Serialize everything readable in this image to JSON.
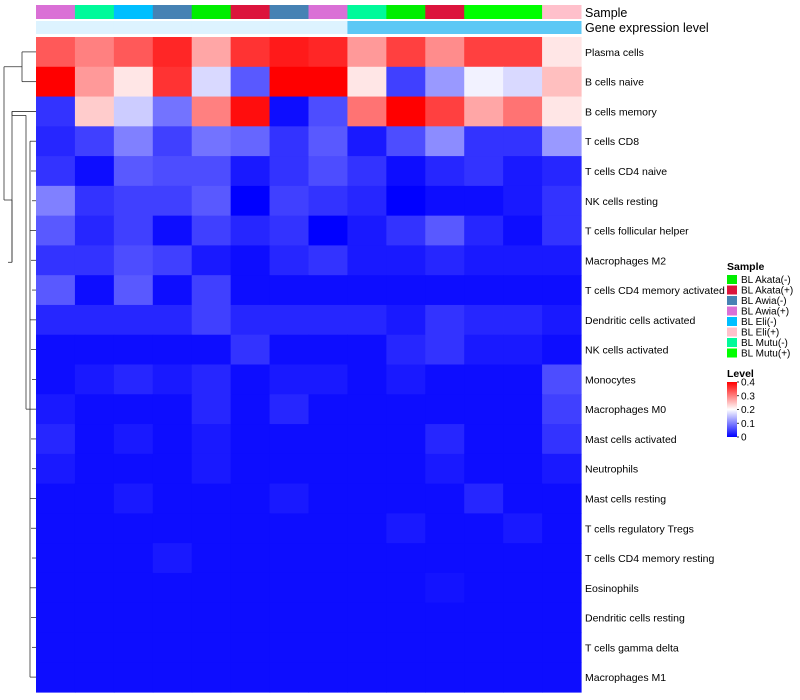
{
  "chart_data": {
    "type": "heatmap",
    "annotation_labels": {
      "sample": "Sample",
      "gene_expression": "Gene expression level"
    },
    "sample_legend": {
      "title": "Sample",
      "entries": [
        {
          "label": "BL Akata(-)",
          "color": "#00EE00"
        },
        {
          "label": "BL Akata(+)",
          "color": "#DC143C"
        },
        {
          "label": "BL Awia(-)",
          "color": "#4682B4"
        },
        {
          "label": "BL Awia(+)",
          "color": "#DA70D6"
        },
        {
          "label": "BL Eli(-)",
          "color": "#00BFFF"
        },
        {
          "label": "BL Eli(+)",
          "color": "#FFC0CB"
        },
        {
          "label": "BL Mutu(-)",
          "color": "#00FA9A"
        },
        {
          "label": "BL Mutu(+)",
          "color": "#00FF00"
        }
      ]
    },
    "level_legend": {
      "title": "Level",
      "ticks": [
        "0.4",
        "0.3",
        "0.2",
        "0.1",
        "0"
      ],
      "range": [
        0,
        0.4
      ],
      "colors": [
        "#0000FF",
        "#FFFFFF",
        "#FF0000"
      ]
    },
    "column_samples": [
      "BL Awia(+)",
      "BL Mutu(-)",
      "BL Eli(-)",
      "BL Awia(-)",
      "BL Akata(-)",
      "BL Akata(+)",
      "BL Awia(-)",
      "BL Awia(+)",
      "BL Mutu(-)",
      "BL Akata(-)",
      "BL Akata(+)",
      "BL Mutu(+)",
      "BL Mutu(+)",
      "BL Eli(+)"
    ],
    "gene_expression_colors": [
      "#DDF3FF",
      "#DDF3FF",
      "#DDF3FF",
      "#DDF3FF",
      "#DDF3FF",
      "#DDF3FF",
      "#DDF3FF",
      "#DDF3FF",
      "#5CC8F5",
      "#5CC8F5",
      "#5CC8F5",
      "#5CC8F5",
      "#5CC8F5",
      "#5CC8F5"
    ],
    "rows": [
      "Plasma cells",
      "B cells naive",
      "B cells memory",
      "T cells CD8",
      "T cells CD4 naive",
      "NK cells resting",
      "T cells follicular helper",
      "Macrophages M2",
      "T cells CD4 memory activated",
      "Dendritic cells activated",
      "NK cells activated",
      "Monocytes",
      "Macrophages M0",
      "Mast cells activated",
      "Neutrophils",
      "Mast cells resting",
      "T cells regulatory  Tregs",
      "T cells CD4 memory resting",
      "Eosinophils",
      "Dendritic cells resting",
      "T cells gamma delta",
      "Macrophages M1"
    ],
    "values": [
      [
        0.33,
        0.3,
        0.33,
        0.37,
        0.27,
        0.36,
        0.38,
        0.37,
        0.28,
        0.35,
        0.29,
        0.35,
        0.35,
        0.22
      ],
      [
        0.4,
        0.28,
        0.22,
        0.36,
        0.17,
        0.07,
        0.4,
        0.4,
        0.22,
        0.05,
        0.12,
        0.19,
        0.17,
        0.25
      ],
      [
        0.04,
        0.24,
        0.16,
        0.09,
        0.3,
        0.39,
        0.01,
        0.06,
        0.31,
        0.4,
        0.35,
        0.27,
        0.31,
        0.22
      ],
      [
        0.03,
        0.05,
        0.1,
        0.05,
        0.09,
        0.08,
        0.04,
        0.07,
        0.02,
        0.06,
        0.11,
        0.04,
        0.04,
        0.12
      ],
      [
        0.04,
        0.01,
        0.07,
        0.06,
        0.06,
        0.02,
        0.04,
        0.06,
        0.04,
        0.01,
        0.03,
        0.04,
        0.02,
        0.03
      ],
      [
        0.1,
        0.04,
        0.05,
        0.05,
        0.07,
        0.0,
        0.05,
        0.04,
        0.03,
        0.0,
        0.01,
        0.01,
        0.02,
        0.04
      ],
      [
        0.07,
        0.03,
        0.05,
        0.01,
        0.05,
        0.03,
        0.04,
        0.0,
        0.02,
        0.04,
        0.07,
        0.03,
        0.01,
        0.04
      ],
      [
        0.04,
        0.04,
        0.06,
        0.05,
        0.02,
        0.01,
        0.03,
        0.04,
        0.02,
        0.02,
        0.03,
        0.02,
        0.02,
        0.02
      ],
      [
        0.07,
        0.01,
        0.07,
        0.01,
        0.05,
        0.01,
        0.01,
        0.01,
        0.01,
        0.01,
        0.01,
        0.01,
        0.01,
        0.01
      ],
      [
        0.03,
        0.03,
        0.03,
        0.03,
        0.05,
        0.03,
        0.03,
        0.03,
        0.03,
        0.02,
        0.04,
        0.03,
        0.03,
        0.02
      ],
      [
        0.01,
        0.01,
        0.01,
        0.01,
        0.01,
        0.04,
        0.01,
        0.01,
        0.01,
        0.03,
        0.04,
        0.02,
        0.02,
        0.01
      ],
      [
        0.01,
        0.02,
        0.03,
        0.02,
        0.03,
        0.01,
        0.02,
        0.02,
        0.01,
        0.02,
        0.01,
        0.01,
        0.01,
        0.06
      ],
      [
        0.02,
        0.01,
        0.01,
        0.01,
        0.03,
        0.01,
        0.03,
        0.01,
        0.01,
        0.01,
        0.01,
        0.01,
        0.01,
        0.05
      ],
      [
        0.03,
        0.01,
        0.02,
        0.01,
        0.02,
        0.01,
        0.01,
        0.01,
        0.01,
        0.01,
        0.03,
        0.01,
        0.01,
        0.04
      ],
      [
        0.02,
        0.01,
        0.01,
        0.01,
        0.02,
        0.01,
        0.01,
        0.01,
        0.01,
        0.01,
        0.02,
        0.01,
        0.01,
        0.02
      ],
      [
        0.01,
        0.01,
        0.02,
        0.01,
        0.01,
        0.01,
        0.02,
        0.01,
        0.01,
        0.01,
        0.01,
        0.03,
        0.01,
        0.01
      ],
      [
        0.01,
        0.01,
        0.01,
        0.01,
        0.01,
        0.01,
        0.01,
        0.01,
        0.01,
        0.02,
        0.01,
        0.01,
        0.02,
        0.01
      ],
      [
        0.01,
        0.01,
        0.01,
        0.02,
        0.01,
        0.01,
        0.01,
        0.01,
        0.01,
        0.01,
        0.01,
        0.01,
        0.01,
        0.01
      ],
      [
        0.01,
        0.01,
        0.01,
        0.01,
        0.01,
        0.01,
        0.01,
        0.01,
        0.01,
        0.01,
        0.015,
        0.01,
        0.01,
        0.01
      ],
      [
        0.01,
        0.01,
        0.01,
        0.01,
        0.01,
        0.01,
        0.01,
        0.01,
        0.01,
        0.01,
        0.01,
        0.01,
        0.01,
        0.01
      ],
      [
        0.01,
        0.01,
        0.01,
        0.01,
        0.01,
        0.01,
        0.01,
        0.01,
        0.01,
        0.01,
        0.01,
        0.01,
        0.01,
        0.01
      ],
      [
        0.01,
        0.01,
        0.01,
        0.01,
        0.01,
        0.01,
        0.01,
        0.01,
        0.01,
        0.01,
        0.01,
        0.01,
        0.01,
        0.01
      ]
    ]
  }
}
